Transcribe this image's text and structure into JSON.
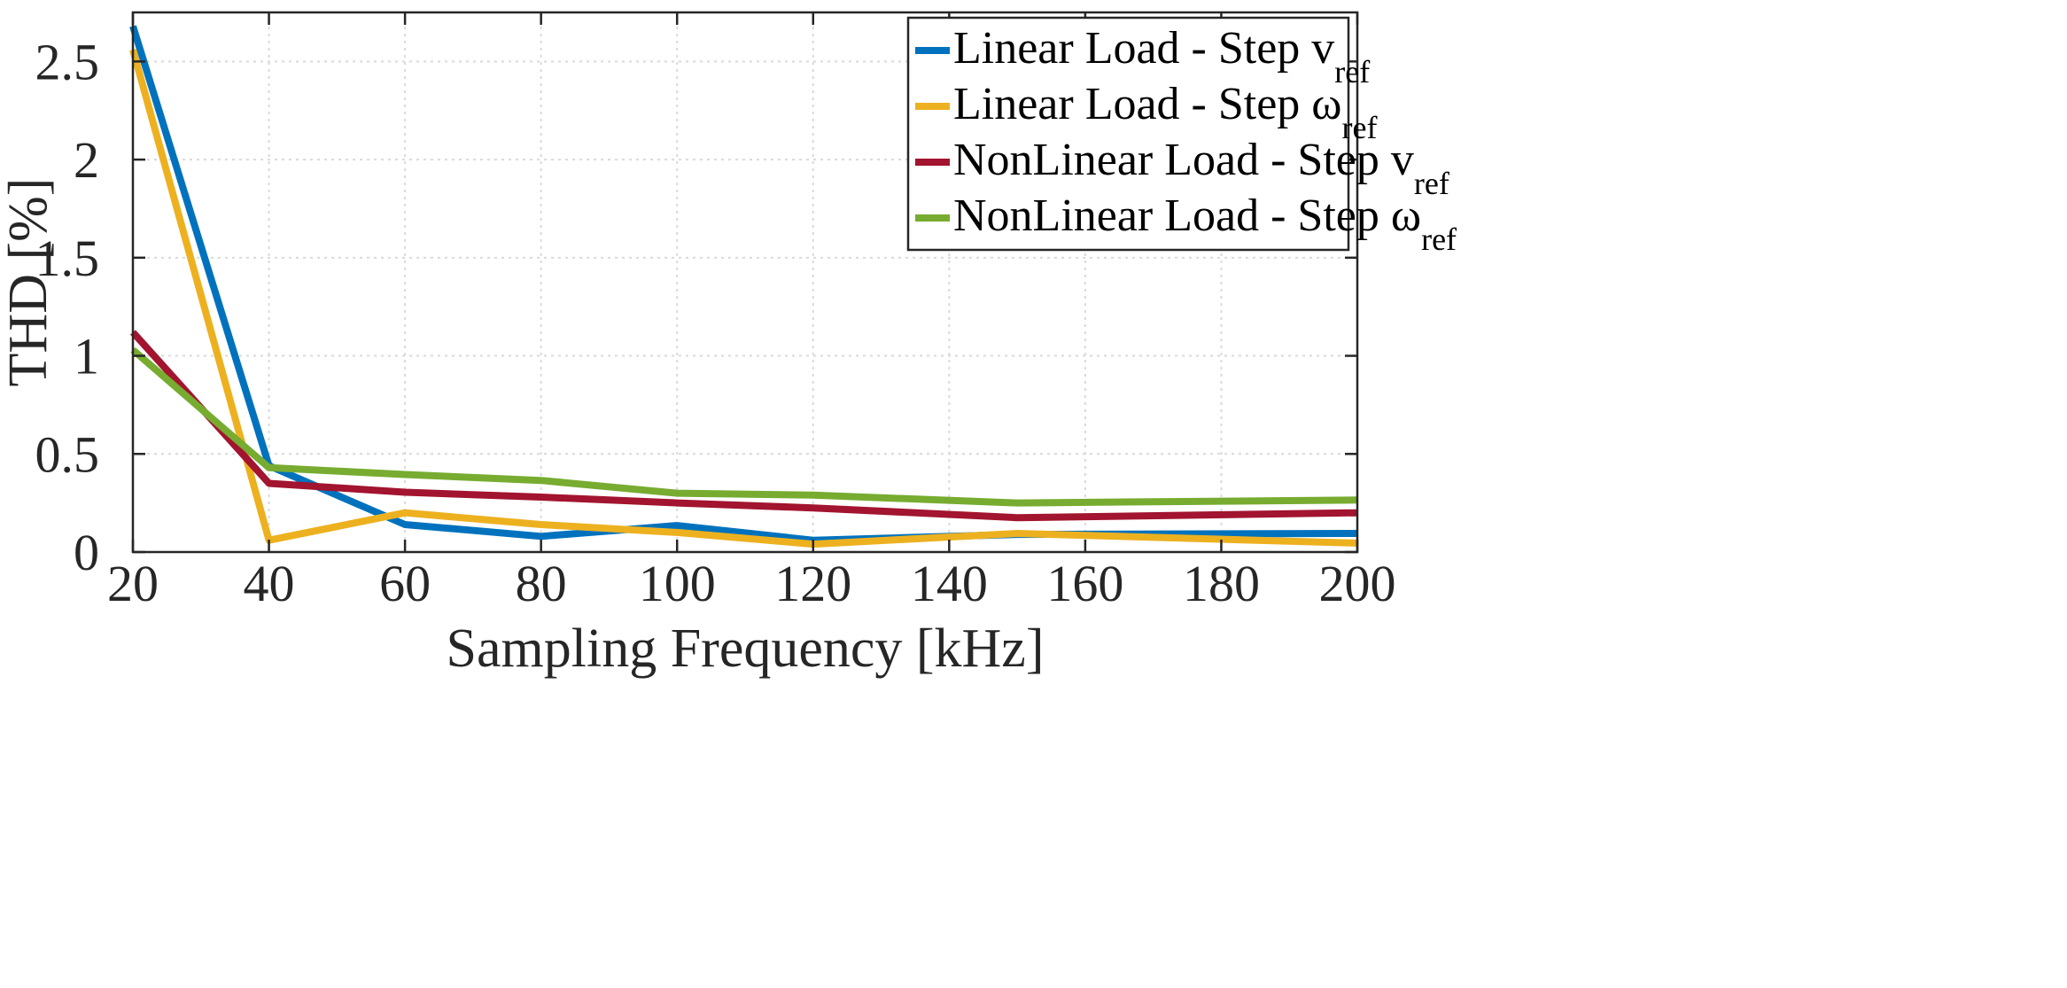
{
  "chart_data": {
    "type": "line",
    "title": "",
    "xlabel": "Sampling Frequency [kHz]",
    "ylabel": "THD [%]",
    "xlim": [
      20,
      200
    ],
    "ylim": [
      0,
      2.75
    ],
    "xticks": [
      20,
      40,
      60,
      80,
      100,
      120,
      140,
      160,
      180,
      200
    ],
    "yticks": [
      0,
      0.5,
      1,
      1.5,
      2,
      2.5
    ],
    "ytick_labels": [
      "0",
      "0.5",
      "1",
      "1.5",
      "2",
      "2.5"
    ],
    "grid": true,
    "legend_position": "top-right",
    "x": [
      20,
      40,
      60,
      80,
      100,
      120,
      150,
      200
    ],
    "series": [
      {
        "name": "Linear Load - Step v",
        "name_sub": "ref",
        "color": "#0072BD",
        "values": [
          2.68,
          0.44,
          0.14,
          0.08,
          0.135,
          0.06,
          0.09,
          0.095
        ]
      },
      {
        "name": "Linear Load - Step ω",
        "name_sub": "ref",
        "color": "#EDB120",
        "values": [
          2.56,
          0.06,
          0.2,
          0.14,
          0.1,
          0.04,
          0.095,
          0.045
        ]
      },
      {
        "name": "NonLinear Load - Step v",
        "name_sub": "ref",
        "color": "#A2142F",
        "values": [
          1.12,
          0.35,
          0.305,
          0.28,
          0.25,
          0.225,
          0.175,
          0.2
        ]
      },
      {
        "name": "NonLinear Load - Step ω",
        "name_sub": "ref",
        "color": "#77AC30",
        "values": [
          1.03,
          0.43,
          0.395,
          0.365,
          0.3,
          0.29,
          0.25,
          0.265
        ]
      }
    ]
  }
}
